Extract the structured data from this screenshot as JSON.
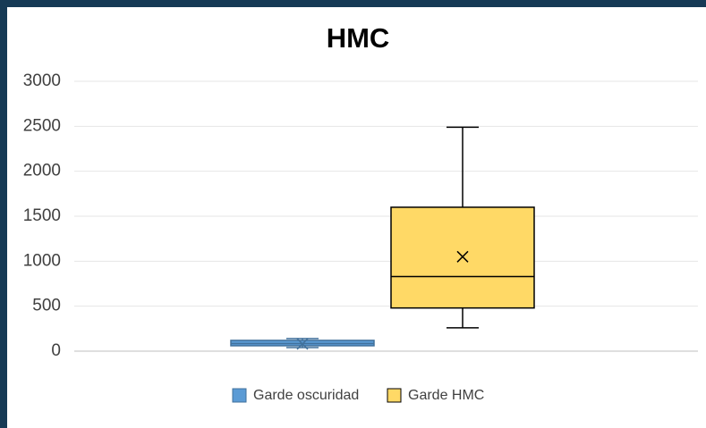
{
  "chart_data": {
    "type": "box",
    "title": "HMC",
    "series": [
      {
        "name": "Garde oscuridad",
        "color": "#5b9bd5",
        "edgecolor": "#41719c",
        "min": 40,
        "q1": 60,
        "median": 85,
        "q3": 120,
        "max": 140,
        "mean": 80
      },
      {
        "name": "Garde HMC",
        "color": "#ffd966",
        "edgecolor": "#000000",
        "min": 260,
        "q1": 480,
        "median": 830,
        "q3": 1600,
        "max": 2490,
        "mean": 1050
      }
    ],
    "ylim": [
      0,
      3000
    ],
    "yticks": [
      0,
      500,
      1000,
      1500,
      2000,
      2500,
      3000
    ],
    "grid": true,
    "legend": "bottom"
  }
}
